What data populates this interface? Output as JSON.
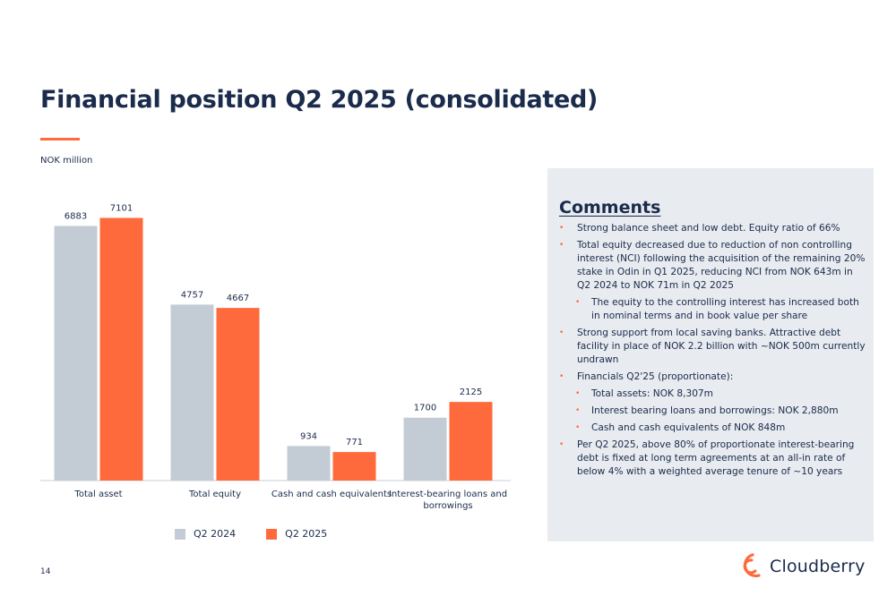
{
  "title": "Financial position Q2 2025 (consolidated)",
  "unit_label": "NOK million",
  "colors": {
    "q2_2024": "#c3ccd5",
    "q2_2025": "#ff6a3d",
    "text": "#1a2b4c",
    "panel": "#e8ebef"
  },
  "chart_data": {
    "type": "bar",
    "categories": [
      "Total asset",
      "Total equity",
      "Cash and cash equivalents",
      "Interest-bearing loans and borrowings"
    ],
    "series": [
      {
        "name": "Q2 2024",
        "values": [
          6883,
          4757,
          934,
          1700
        ]
      },
      {
        "name": "Q2 2025",
        "values": [
          7101,
          4667,
          771,
          2125
        ]
      }
    ],
    "ylim": [
      0,
      7500
    ],
    "grid": false,
    "legend": "bottom"
  },
  "comments": {
    "title": "Comments",
    "items": [
      {
        "text": "Strong balance sheet and low debt. Equity ratio of 66%",
        "level": 1
      },
      {
        "text": "Total equity decreased due to reduction of non controlling interest (NCI) following the acquisition of the remaining 20% stake in Odin in Q1 2025, reducing NCI from NOK 643m in Q2 2024 to NOK 71m in Q2 2025",
        "level": 1
      },
      {
        "text": "The equity to the controlling interest has increased both in nominal terms and in book value per share",
        "level": 2
      },
      {
        "text": "Strong support from local saving banks.  Attractive debt facility in place of NOK 2.2 billion with ~NOK 500m currently undrawn",
        "level": 1
      },
      {
        "text": "Financials Q2'25 (proportionate):",
        "level": 1
      },
      {
        "text": "Total assets: NOK 8,307m",
        "level": 2
      },
      {
        "text": "Interest bearing loans and borrowings: NOK 2,880m",
        "level": 2
      },
      {
        "text": "Cash and cash equivalents of NOK 848m",
        "level": 2
      },
      {
        "text": "Per Q2 2025, above 80% of proportionate interest-bearing debt is fixed at long term agreements at an all-in rate of below 4% with a weighted average tenure of ~10 years",
        "level": 1
      }
    ]
  },
  "footer": {
    "page_number": "14",
    "logo_text": "Cloudberry",
    "logo_icon": "cloudberry-logo-icon"
  }
}
